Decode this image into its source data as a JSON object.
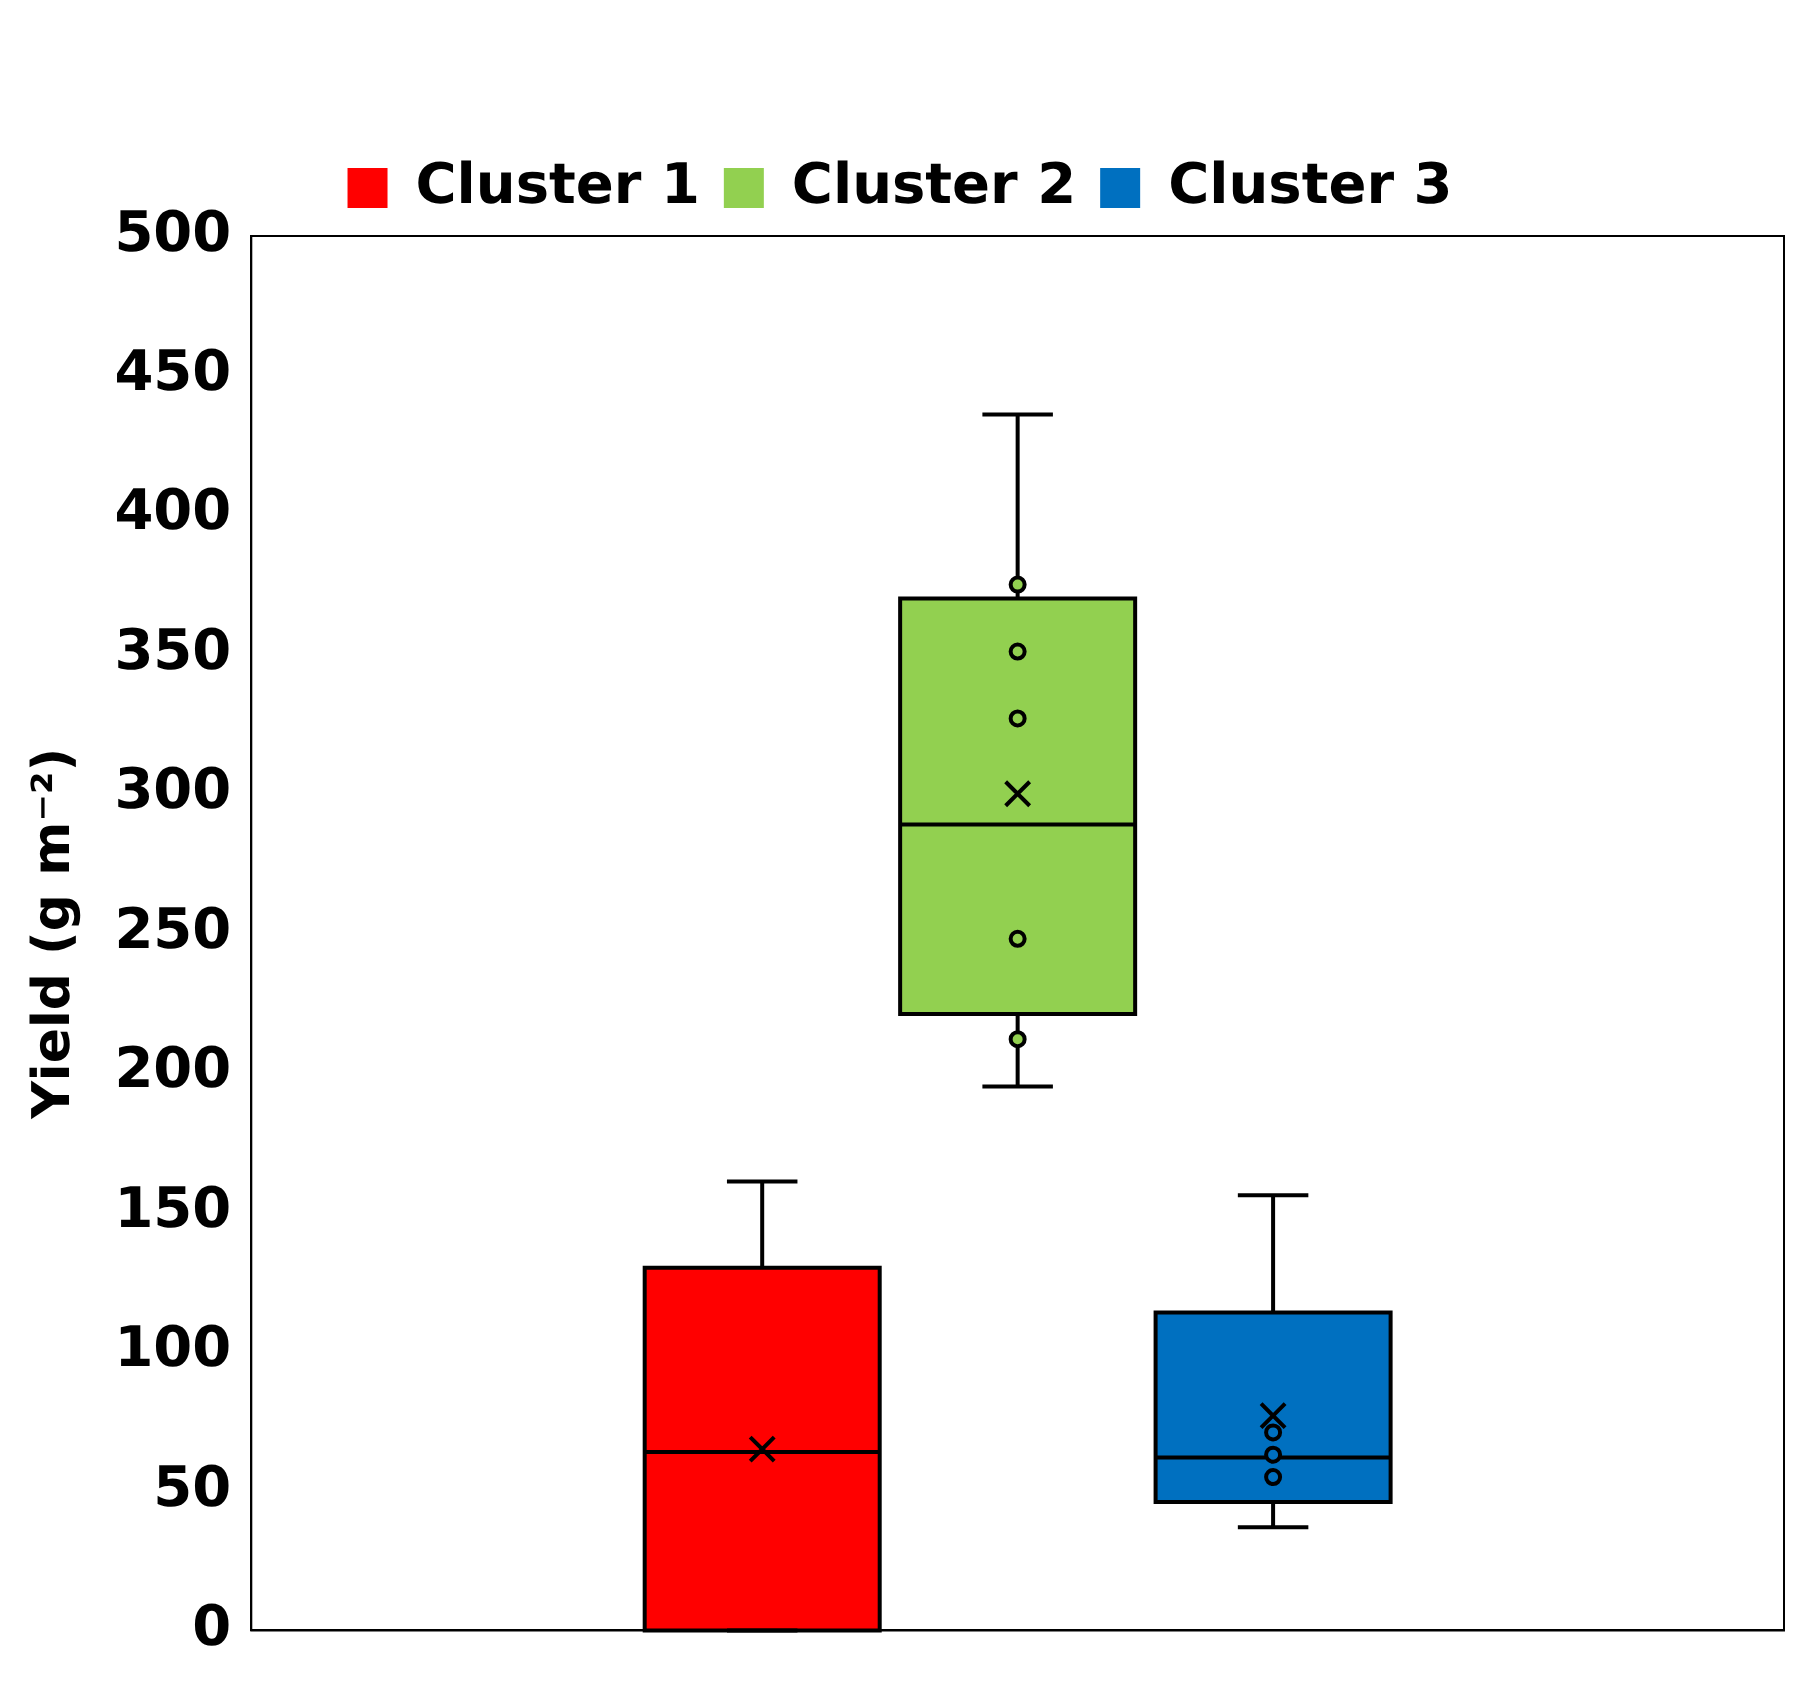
{
  "chart_data": {
    "type": "box",
    "categories": [
      null
    ],
    "ylabel": "Yield (g m⁻²)",
    "ylim": [
      0,
      500
    ],
    "yticks": [
      0,
      50,
      100,
      150,
      200,
      250,
      300,
      350,
      400,
      450,
      500
    ],
    "grid": false,
    "legend": "top",
    "tick_labels": "y",
    "series": [
      {
        "name": "Cluster 1",
        "color": "#ff0000",
        "boxes": [
          {
            "low": 0,
            "q1": 0,
            "median": 64,
            "q3": 130,
            "high": 161,
            "mean": 65
          }
        ]
      },
      {
        "name": "Cluster 2",
        "color": "#92d050",
        "boxes": [
          {
            "low": 195,
            "q1": 221,
            "median": 289,
            "q3": 370,
            "high": 436,
            "mean": 300,
            "outliers": [
              212,
              248,
              327,
              351,
              375
            ]
          }
        ]
      },
      {
        "name": "Cluster 3",
        "color": "#0070c0",
        "boxes": [
          {
            "low": 37,
            "q1": 46,
            "median": 62,
            "q3": 114,
            "high": 156,
            "mean": 77,
            "outliers": [
              55,
              63,
              71
            ]
          }
        ]
      }
    ]
  }
}
